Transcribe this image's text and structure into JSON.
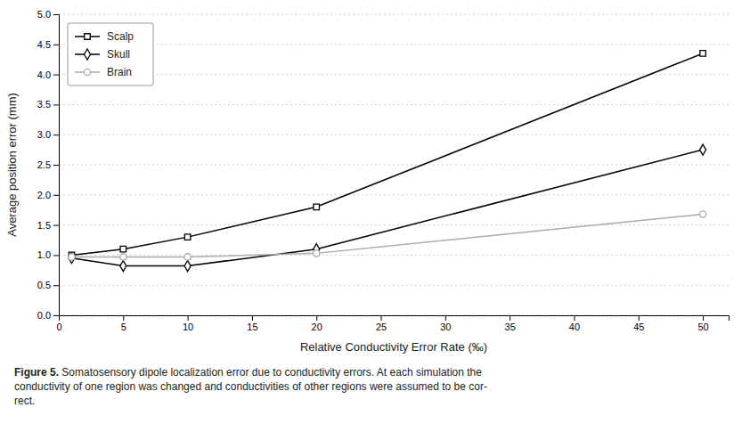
{
  "chart_data": {
    "type": "line",
    "x_label": "Relative Conductivity Error Rate (‰)",
    "y_label": "Average position error (mm)",
    "x": [
      1,
      5,
      10,
      20,
      50
    ],
    "series": [
      {
        "name": "Scalp",
        "color": "#000000",
        "marker": "square",
        "values": [
          1.0,
          1.1,
          1.3,
          1.8,
          4.35
        ]
      },
      {
        "name": "Skull",
        "color": "#000000",
        "marker": "diamond",
        "values": [
          0.95,
          0.82,
          0.82,
          1.1,
          2.75
        ]
      },
      {
        "name": "Brain",
        "color": "#aaaaaa",
        "marker": "circle",
        "values": [
          0.97,
          0.97,
          0.97,
          1.03,
          1.68
        ]
      }
    ],
    "xlim": [
      0,
      52
    ],
    "ylim": [
      0,
      5
    ],
    "xticks": [
      0,
      5,
      10,
      15,
      20,
      25,
      30,
      35,
      40,
      45,
      50
    ],
    "yticks": [
      {
        "value": 0,
        "label": "0.0"
      },
      0.5,
      {
        "value": 1.0,
        "label": "1.0"
      },
      1.5,
      {
        "value": 2.0,
        "label": "2.0"
      },
      2.5,
      {
        "value": 3.0,
        "label": "3.0"
      },
      3.5,
      {
        "value": 4.0,
        "label": "4.0"
      },
      4.5,
      {
        "value": 5.0,
        "label": "5.0"
      }
    ],
    "grid": "y",
    "legend": "upper left",
    "annotations": [
      "Figure 5.",
      " Somatosensory dipole localization error due to conductivity errors. At each simulation the\nconductivity of one region was changed and conductivities of other regions were assumed to be cor-\nrect."
    ]
  }
}
